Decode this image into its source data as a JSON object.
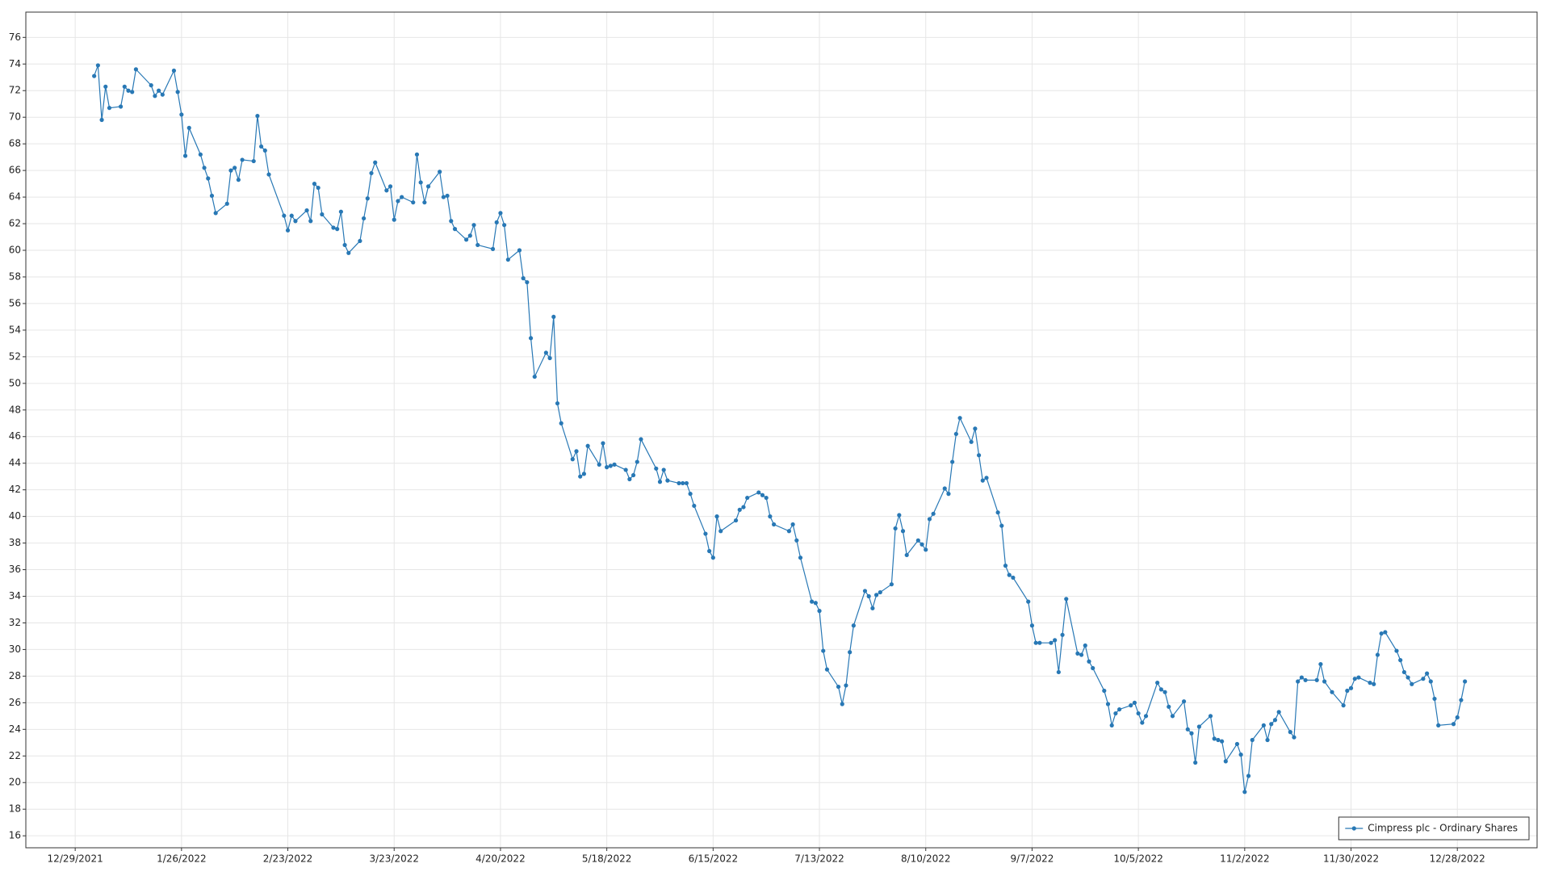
{
  "chart_data": {
    "type": "line",
    "xlim": [
      "2021-12-16",
      "2023-01-18"
    ],
    "ylim": [
      15.1,
      77.9
    ],
    "xticks": [
      {
        "value": "2021-12-29",
        "label": "12/29/2021"
      },
      {
        "value": "2022-01-26",
        "label": "1/26/2022"
      },
      {
        "value": "2022-02-23",
        "label": "2/23/2022"
      },
      {
        "value": "2022-03-23",
        "label": "3/23/2022"
      },
      {
        "value": "2022-04-20",
        "label": "4/20/2022"
      },
      {
        "value": "2022-05-18",
        "label": "5/18/2022"
      },
      {
        "value": "2022-06-15",
        "label": "6/15/2022"
      },
      {
        "value": "2022-07-13",
        "label": "7/13/2022"
      },
      {
        "value": "2022-08-10",
        "label": "8/10/2022"
      },
      {
        "value": "2022-09-07",
        "label": "9/7/2022"
      },
      {
        "value": "2022-10-05",
        "label": "10/5/2022"
      },
      {
        "value": "2022-11-02",
        "label": "11/2/2022"
      },
      {
        "value": "2022-11-30",
        "label": "11/30/2022"
      },
      {
        "value": "2022-12-28",
        "label": "12/28/2022"
      }
    ],
    "yticks": [
      16,
      18,
      20,
      22,
      24,
      26,
      28,
      30,
      32,
      34,
      36,
      38,
      40,
      42,
      44,
      46,
      48,
      50,
      52,
      54,
      56,
      58,
      60,
      62,
      64,
      66,
      68,
      70,
      72,
      74,
      76
    ],
    "grid": true,
    "legend": "lower right",
    "x": [
      "2022-01-03",
      "2022-01-04",
      "2022-01-05",
      "2022-01-06",
      "2022-01-07",
      "2022-01-10",
      "2022-01-11",
      "2022-01-12",
      "2022-01-13",
      "2022-01-14",
      "2022-01-18",
      "2022-01-19",
      "2022-01-20",
      "2022-01-21",
      "2022-01-24",
      "2022-01-25",
      "2022-01-26",
      "2022-01-27",
      "2022-01-28",
      "2022-01-31",
      "2022-02-01",
      "2022-02-02",
      "2022-02-03",
      "2022-02-04",
      "2022-02-07",
      "2022-02-08",
      "2022-02-09",
      "2022-02-10",
      "2022-02-11",
      "2022-02-14",
      "2022-02-15",
      "2022-02-16",
      "2022-02-17",
      "2022-02-18",
      "2022-02-22",
      "2022-02-23",
      "2022-02-24",
      "2022-02-25",
      "2022-02-28",
      "2022-03-01",
      "2022-03-02",
      "2022-03-03",
      "2022-03-04",
      "2022-03-07",
      "2022-03-08",
      "2022-03-09",
      "2022-03-10",
      "2022-03-11",
      "2022-03-14",
      "2022-03-15",
      "2022-03-16",
      "2022-03-17",
      "2022-03-18",
      "2022-03-21",
      "2022-03-22",
      "2022-03-23",
      "2022-03-24",
      "2022-03-25",
      "2022-03-28",
      "2022-03-29",
      "2022-03-30",
      "2022-03-31",
      "2022-04-01",
      "2022-04-04",
      "2022-04-05",
      "2022-04-06",
      "2022-04-07",
      "2022-04-08",
      "2022-04-11",
      "2022-04-12",
      "2022-04-13",
      "2022-04-14",
      "2022-04-18",
      "2022-04-19",
      "2022-04-20",
      "2022-04-21",
      "2022-04-22",
      "2022-04-25",
      "2022-04-26",
      "2022-04-27",
      "2022-04-28",
      "2022-04-29",
      "2022-05-02",
      "2022-05-03",
      "2022-05-04",
      "2022-05-05",
      "2022-05-06",
      "2022-05-09",
      "2022-05-10",
      "2022-05-11",
      "2022-05-12",
      "2022-05-13",
      "2022-05-16",
      "2022-05-17",
      "2022-05-18",
      "2022-05-19",
      "2022-05-20",
      "2022-05-23",
      "2022-05-24",
      "2022-05-25",
      "2022-05-26",
      "2022-05-27",
      "2022-05-31",
      "2022-06-01",
      "2022-06-02",
      "2022-06-03",
      "2022-06-06",
      "2022-06-07",
      "2022-06-08",
      "2022-06-09",
      "2022-06-10",
      "2022-06-13",
      "2022-06-14",
      "2022-06-15",
      "2022-06-16",
      "2022-06-17",
      "2022-06-21",
      "2022-06-22",
      "2022-06-23",
      "2022-06-24",
      "2022-06-27",
      "2022-06-28",
      "2022-06-29",
      "2022-06-30",
      "2022-07-01",
      "2022-07-05",
      "2022-07-06",
      "2022-07-07",
      "2022-07-08",
      "2022-07-11",
      "2022-07-12",
      "2022-07-13",
      "2022-07-14",
      "2022-07-15",
      "2022-07-18",
      "2022-07-19",
      "2022-07-20",
      "2022-07-21",
      "2022-07-22",
      "2022-07-25",
      "2022-07-26",
      "2022-07-27",
      "2022-07-28",
      "2022-07-29",
      "2022-08-01",
      "2022-08-02",
      "2022-08-03",
      "2022-08-04",
      "2022-08-05",
      "2022-08-08",
      "2022-08-09",
      "2022-08-10",
      "2022-08-11",
      "2022-08-12",
      "2022-08-15",
      "2022-08-16",
      "2022-08-17",
      "2022-08-18",
      "2022-08-19",
      "2022-08-22",
      "2022-08-23",
      "2022-08-24",
      "2022-08-25",
      "2022-08-26",
      "2022-08-29",
      "2022-08-30",
      "2022-08-31",
      "2022-09-01",
      "2022-09-02",
      "2022-09-06",
      "2022-09-07",
      "2022-09-08",
      "2022-09-09",
      "2022-09-12",
      "2022-09-13",
      "2022-09-14",
      "2022-09-15",
      "2022-09-16",
      "2022-09-19",
      "2022-09-20",
      "2022-09-21",
      "2022-09-22",
      "2022-09-23",
      "2022-09-26",
      "2022-09-27",
      "2022-09-28",
      "2022-09-29",
      "2022-09-30",
      "2022-10-03",
      "2022-10-04",
      "2022-10-05",
      "2022-10-06",
      "2022-10-07",
      "2022-10-10",
      "2022-10-11",
      "2022-10-12",
      "2022-10-13",
      "2022-10-14",
      "2022-10-17",
      "2022-10-18",
      "2022-10-19",
      "2022-10-20",
      "2022-10-21",
      "2022-10-24",
      "2022-10-25",
      "2022-10-26",
      "2022-10-27",
      "2022-10-28",
      "2022-10-31",
      "2022-11-01",
      "2022-11-02",
      "2022-11-03",
      "2022-11-04",
      "2022-11-07",
      "2022-11-08",
      "2022-11-09",
      "2022-11-10",
      "2022-11-11",
      "2022-11-14",
      "2022-11-15",
      "2022-11-16",
      "2022-11-17",
      "2022-11-18",
      "2022-11-21",
      "2022-11-22",
      "2022-11-23",
      "2022-11-25",
      "2022-11-28",
      "2022-11-29",
      "2022-11-30",
      "2022-12-01",
      "2022-12-02",
      "2022-12-05",
      "2022-12-06",
      "2022-12-07",
      "2022-12-08",
      "2022-12-09",
      "2022-12-12",
      "2022-12-13",
      "2022-12-14",
      "2022-12-15",
      "2022-12-16",
      "2022-12-19",
      "2022-12-20",
      "2022-12-21",
      "2022-12-22",
      "2022-12-23",
      "2022-12-27",
      "2022-12-28",
      "2022-12-29",
      "2022-12-30"
    ],
    "series": [
      {
        "name": "Cimpress plc - Ordinary Shares",
        "color": "#2878b5",
        "values": [
          73.1,
          73.9,
          69.8,
          72.3,
          70.7,
          70.8,
          72.3,
          72.0,
          71.9,
          73.6,
          72.4,
          71.6,
          72.0,
          71.7,
          73.5,
          71.9,
          70.2,
          67.1,
          69.2,
          67.2,
          66.2,
          65.4,
          64.1,
          62.8,
          63.5,
          66.0,
          66.2,
          65.3,
          66.8,
          66.7,
          70.1,
          67.8,
          67.5,
          65.7,
          62.6,
          61.5,
          62.6,
          62.2,
          63.0,
          62.2,
          65.0,
          64.7,
          62.7,
          61.7,
          61.6,
          62.9,
          60.4,
          59.8,
          60.7,
          62.4,
          63.9,
          65.8,
          66.6,
          64.5,
          64.8,
          62.3,
          63.7,
          64.0,
          63.6,
          67.2,
          65.1,
          63.6,
          64.8,
          65.9,
          64.0,
          64.1,
          62.2,
          61.6,
          60.8,
          61.1,
          61.9,
          60.4,
          60.1,
          62.1,
          62.8,
          61.9,
          59.3,
          60.0,
          57.9,
          57.6,
          53.4,
          50.5,
          52.3,
          51.9,
          55.0,
          48.5,
          47.0,
          44.3,
          44.9,
          43.0,
          43.2,
          45.3,
          43.9,
          45.5,
          43.7,
          43.8,
          43.9,
          43.5,
          42.8,
          43.1,
          44.1,
          45.8,
          43.6,
          42.6,
          43.5,
          42.7,
          42.5,
          42.5,
          42.5,
          41.7,
          40.8,
          38.7,
          37.4,
          36.9,
          40.0,
          38.9,
          39.7,
          40.5,
          40.7,
          41.4,
          41.8,
          41.6,
          41.4,
          40.0,
          39.4,
          38.9,
          39.4,
          38.2,
          36.9,
          33.6,
          33.5,
          32.9,
          29.9,
          28.5,
          27.2,
          25.9,
          27.3,
          29.8,
          31.8,
          34.4,
          34.0,
          33.1,
          34.1,
          34.3,
          34.9,
          39.1,
          40.1,
          38.9,
          37.1,
          38.2,
          37.9,
          37.5,
          39.8,
          40.2,
          42.1,
          41.7,
          44.1,
          46.2,
          47.4,
          45.6,
          46.6,
          44.6,
          42.7,
          42.9,
          40.3,
          39.3,
          36.3,
          35.6,
          35.4,
          33.6,
          31.8,
          30.5,
          30.5,
          30.5,
          30.7,
          28.3,
          31.1,
          33.8,
          29.7,
          29.6,
          30.3,
          29.1,
          28.6,
          26.9,
          25.9,
          24.3,
          25.2,
          25.5,
          25.8,
          26.0,
          25.2,
          24.5,
          25.0,
          27.5,
          27.0,
          26.8,
          25.7,
          25.0,
          26.1,
          24.0,
          23.7,
          21.5,
          24.2,
          25.0,
          23.3,
          23.2,
          23.1,
          21.6,
          22.9,
          22.1,
          19.3,
          20.5,
          23.2,
          24.3,
          23.2,
          24.4,
          24.7,
          25.3,
          23.8,
          23.4,
          27.6,
          27.9,
          27.7,
          27.7,
          28.9,
          27.6,
          26.8,
          25.8,
          26.9,
          27.1,
          27.8,
          27.9,
          27.5,
          27.4,
          29.6,
          31.2,
          31.3,
          29.9,
          29.2,
          28.3,
          27.9,
          27.4,
          27.8,
          28.2,
          27.6,
          26.3,
          24.3,
          24.4,
          24.9,
          26.2,
          27.6
        ]
      }
    ]
  }
}
